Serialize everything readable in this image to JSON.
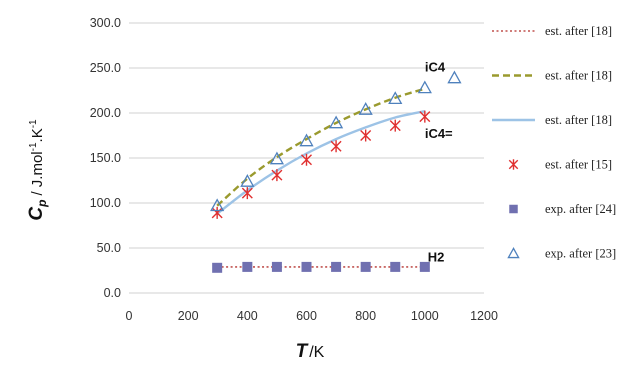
{
  "chart_data": {
    "type": "scatter",
    "xlabel_symbol": "T",
    "xlabel_unit": "/K",
    "ylabel_symbol": "C",
    "ylabel_sub": "p",
    "ylabel_unit_parts": [
      "/ J.mol",
      "-1",
      ".K",
      "-1"
    ],
    "xlim": [
      0,
      1200
    ],
    "ylim": [
      0,
      300
    ],
    "xticks": [
      "0",
      "200",
      "400",
      "600",
      "800",
      "1000",
      "1200"
    ],
    "yticks": [
      "0.0",
      "50.0",
      "100.0",
      "150.0",
      "200.0",
      "250.0",
      "300.0"
    ],
    "grid": "horizontal",
    "legend_position": "right",
    "annotations": [
      {
        "text": "iC4",
        "x": 1000,
        "y": 246
      },
      {
        "text": "iC4=",
        "x": 1000,
        "y": 172
      },
      {
        "text": "H2",
        "x": 1010,
        "y": 35
      }
    ],
    "series": [
      {
        "name": "est. after [18]",
        "style": "dotted",
        "color": "#c0504d",
        "x": [
          298,
          1000
        ],
        "y": [
          29,
          29
        ]
      },
      {
        "name": "est. after [18]",
        "style": "dashed",
        "color": "#9a9a2e",
        "x": [
          298,
          400,
          500,
          600,
          700,
          800,
          900,
          1000
        ],
        "y": [
          97,
          127,
          151,
          171,
          189,
          204,
          217,
          227
        ]
      },
      {
        "name": "est. after [18]",
        "style": "solid",
        "color": "#9dc3e6",
        "x": [
          298,
          400,
          500,
          600,
          700,
          800,
          900,
          1000
        ],
        "y": [
          88,
          114,
          136,
          155,
          171,
          184,
          195,
          202
        ]
      },
      {
        "name": "est. after [15]",
        "style": "asterisk",
        "color": "#e03030",
        "x": [
          298,
          400,
          500,
          600,
          700,
          800,
          900,
          1000
        ],
        "y": [
          89,
          111,
          131,
          148,
          163,
          175,
          186,
          196
        ]
      },
      {
        "name": "exp. after [24]",
        "style": "square",
        "color": "#7070b0",
        "x": [
          298,
          400,
          500,
          600,
          700,
          800,
          900,
          1000
        ],
        "y": [
          28,
          29,
          29,
          29,
          29,
          29,
          29,
          29
        ]
      },
      {
        "name": "exp. after [23]",
        "style": "triangle",
        "color": "#4f81bd",
        "x": [
          298,
          400,
          500,
          600,
          700,
          800,
          900,
          1000,
          1100
        ],
        "y": [
          97,
          124,
          149,
          169,
          189,
          204,
          216,
          228,
          239
        ]
      }
    ]
  }
}
